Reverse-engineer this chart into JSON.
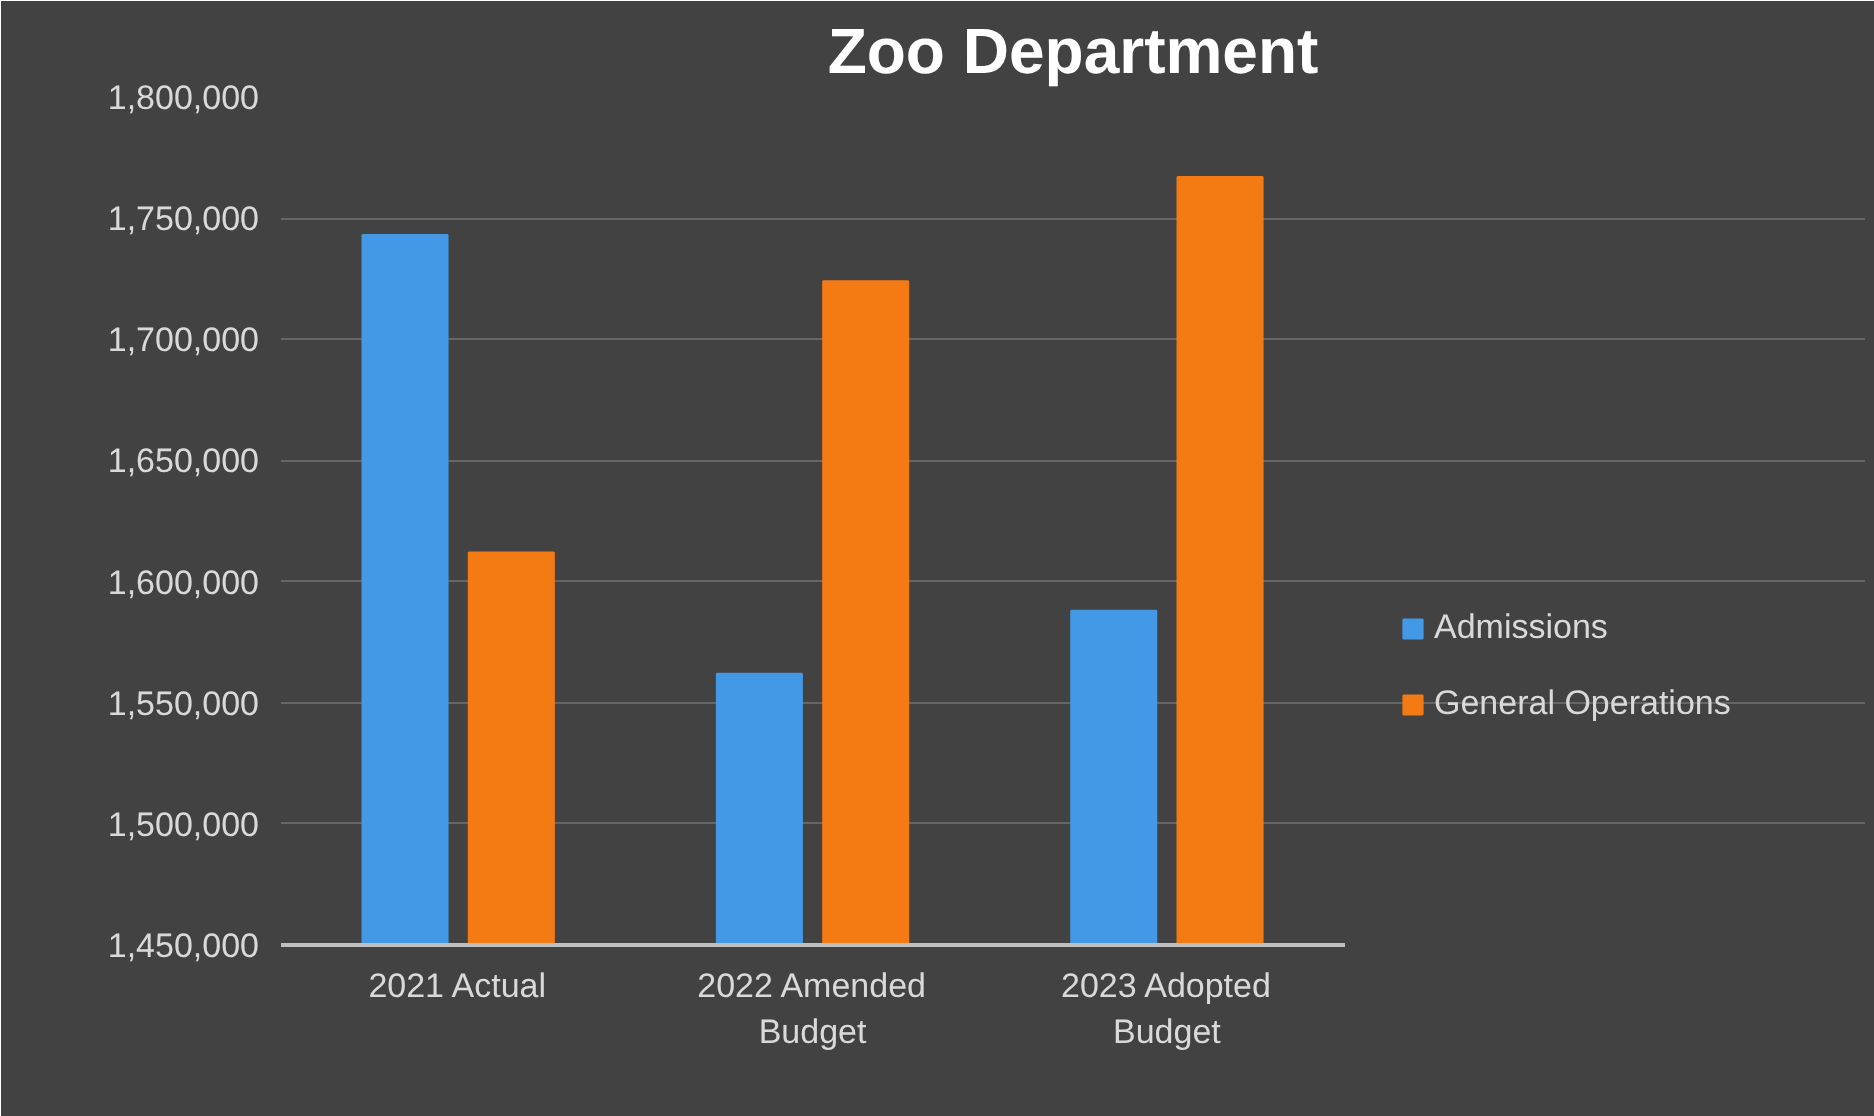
{
  "chart_data": {
    "type": "bar",
    "title": "Zoo Department",
    "categories": [
      "2021 Actual",
      "2022 Amended Budget",
      "2023 Adopted Budget"
    ],
    "series": [
      {
        "name": "Admissions",
        "color": "#4499e6",
        "values": [
          1743000,
          1562000,
          1588000
        ]
      },
      {
        "name": "General Operations",
        "color": "#f47a14",
        "values": [
          1612000,
          1724000,
          1767000
        ]
      }
    ],
    "ylim": [
      1450000,
      1800000
    ],
    "yticks": [
      {
        "value": 1450000,
        "label": "1,450,000"
      },
      {
        "value": 1500000,
        "label": "1,500,000"
      },
      {
        "value": 1550000,
        "label": "1,550,000"
      },
      {
        "value": 1600000,
        "label": "1,600,000"
      },
      {
        "value": 1650000,
        "label": "1,650,000"
      },
      {
        "value": 1700000,
        "label": "1,700,000"
      },
      {
        "value": 1750000,
        "label": "1,750,000"
      },
      {
        "value": 1800000,
        "label": "1,800,000"
      }
    ],
    "grid": "y",
    "legend": "right"
  }
}
